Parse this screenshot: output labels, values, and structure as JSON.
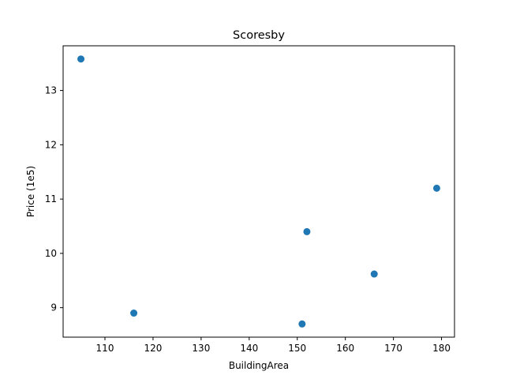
{
  "chart_data": {
    "type": "scatter",
    "title": "Scoresby",
    "xlabel": "BuildingArea",
    "ylabel": "Price (1e5)",
    "xlim": [
      101.3,
      182.7
    ],
    "ylim": [
      8.457,
      13.823
    ],
    "xticks": [
      110,
      120,
      130,
      140,
      150,
      160,
      170,
      180
    ],
    "yticks": [
      9,
      10,
      11,
      12,
      13
    ],
    "grid": false,
    "marker_color": "#1f77b4",
    "points": [
      {
        "x": 105,
        "y": 13.58
      },
      {
        "x": 116,
        "y": 8.9
      },
      {
        "x": 151,
        "y": 8.7
      },
      {
        "x": 152,
        "y": 10.4
      },
      {
        "x": 166,
        "y": 9.62
      },
      {
        "x": 179,
        "y": 11.2
      }
    ]
  }
}
